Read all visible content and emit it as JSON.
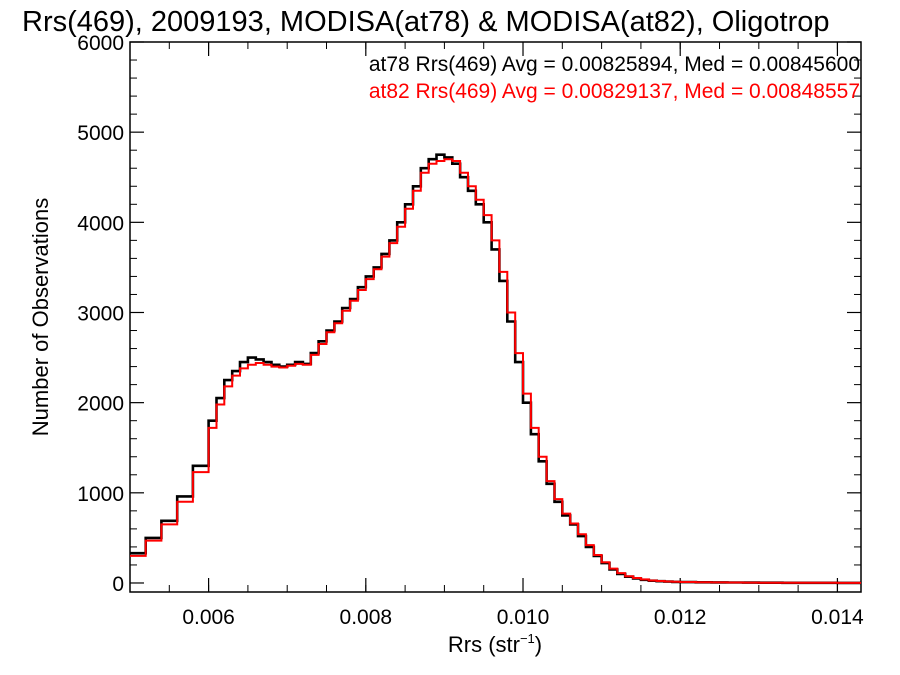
{
  "chart_data": {
    "type": "line",
    "title": "Rrs(469), 2009193, MODISA(at78) & MODISA(at82), Oligotrop",
    "xlabel_main": "Rrs (str",
    "xlabel_sup": "−1",
    "xlabel_close": ")",
    "ylabel": "Number of Observations",
    "xlim": [
      0.005,
      0.0143
    ],
    "ylim": [
      -100,
      6000
    ],
    "x_ticks": [
      0.006,
      0.008,
      0.01,
      0.012,
      0.014
    ],
    "x_tick_labels": [
      "0.006",
      "0.008",
      "0.010",
      "0.012",
      "0.014"
    ],
    "y_ticks": [
      0,
      1000,
      2000,
      3000,
      4000,
      5000,
      6000
    ],
    "y_tick_labels": [
      "0",
      "1000",
      "2000",
      "3000",
      "4000",
      "5000",
      "6000"
    ],
    "legend_position": "top-right",
    "legend": [
      "at78 Rrs(469) Avg = 0.00825894, Med = 0.00845600",
      "at82 Rrs(469) Avg = 0.00829137, Med = 0.00848557"
    ],
    "series": [
      {
        "name": "at78 Rrs(469)",
        "color": "#000000",
        "x": [
          0.005,
          0.0052,
          0.0054,
          0.0056,
          0.0058,
          0.006,
          0.0061,
          0.0062,
          0.0063,
          0.0064,
          0.0065,
          0.0066,
          0.0067,
          0.0068,
          0.0069,
          0.007,
          0.0071,
          0.0072,
          0.0073,
          0.0074,
          0.0075,
          0.0076,
          0.0077,
          0.0078,
          0.0079,
          0.008,
          0.0081,
          0.0082,
          0.0083,
          0.0084,
          0.0085,
          0.0086,
          0.0087,
          0.0088,
          0.0089,
          0.009,
          0.0091,
          0.0092,
          0.0093,
          0.0094,
          0.0095,
          0.0096,
          0.0097,
          0.0098,
          0.0099,
          0.01,
          0.0101,
          0.0102,
          0.0103,
          0.0104,
          0.0105,
          0.0106,
          0.0107,
          0.0108,
          0.0109,
          0.011,
          0.0111,
          0.0112,
          0.0113,
          0.0114,
          0.0115,
          0.0116,
          0.0117,
          0.0118,
          0.0119,
          0.012,
          0.0122,
          0.0124,
          0.0126,
          0.0128,
          0.013,
          0.0133,
          0.0136,
          0.014,
          0.0143
        ],
        "y": [
          330,
          500,
          690,
          960,
          1300,
          1800,
          2050,
          2250,
          2350,
          2450,
          2500,
          2480,
          2450,
          2420,
          2400,
          2420,
          2450,
          2430,
          2550,
          2680,
          2800,
          2900,
          3050,
          3150,
          3280,
          3400,
          3500,
          3650,
          3800,
          4000,
          4200,
          4400,
          4600,
          4700,
          4750,
          4720,
          4650,
          4500,
          4350,
          4200,
          4000,
          3700,
          3350,
          2900,
          2450,
          2000,
          1650,
          1350,
          1100,
          900,
          750,
          650,
          520,
          400,
          300,
          220,
          150,
          100,
          70,
          50,
          35,
          25,
          20,
          15,
          12,
          10,
          8,
          6,
          5,
          4,
          3,
          2,
          2,
          1,
          1
        ]
      },
      {
        "name": "at82 Rrs(469)",
        "color": "#ff0000",
        "x": [
          0.005,
          0.0052,
          0.0054,
          0.0056,
          0.0058,
          0.006,
          0.0061,
          0.0062,
          0.0063,
          0.0064,
          0.0065,
          0.0066,
          0.0067,
          0.0068,
          0.0069,
          0.007,
          0.0071,
          0.0072,
          0.0073,
          0.0074,
          0.0075,
          0.0076,
          0.0077,
          0.0078,
          0.0079,
          0.008,
          0.0081,
          0.0082,
          0.0083,
          0.0084,
          0.0085,
          0.0086,
          0.0087,
          0.0088,
          0.0089,
          0.009,
          0.0091,
          0.0092,
          0.0093,
          0.0094,
          0.0095,
          0.0096,
          0.0097,
          0.0098,
          0.0099,
          0.01,
          0.0101,
          0.0102,
          0.0103,
          0.0104,
          0.0105,
          0.0106,
          0.0107,
          0.0108,
          0.0109,
          0.011,
          0.0111,
          0.0112,
          0.0113,
          0.0114,
          0.0115,
          0.0116,
          0.0117,
          0.0118,
          0.0119,
          0.012,
          0.0122,
          0.0124,
          0.0126,
          0.0128,
          0.013,
          0.0133,
          0.0136,
          0.014,
          0.0143
        ],
        "y": [
          300,
          470,
          650,
          900,
          1230,
          1720,
          1980,
          2180,
          2300,
          2380,
          2420,
          2440,
          2420,
          2400,
          2390,
          2410,
          2430,
          2420,
          2530,
          2650,
          2780,
          2880,
          3020,
          3130,
          3250,
          3370,
          3480,
          3620,
          3770,
          3950,
          4150,
          4350,
          4550,
          4650,
          4680,
          4700,
          4680,
          4550,
          4400,
          4250,
          4080,
          3800,
          3450,
          3000,
          2550,
          2100,
          1720,
          1400,
          1130,
          930,
          770,
          660,
          540,
          420,
          310,
          230,
          160,
          110,
          75,
          55,
          40,
          28,
          22,
          16,
          13,
          11,
          9,
          7,
          5,
          4,
          3,
          2,
          2,
          1,
          1
        ]
      }
    ]
  }
}
